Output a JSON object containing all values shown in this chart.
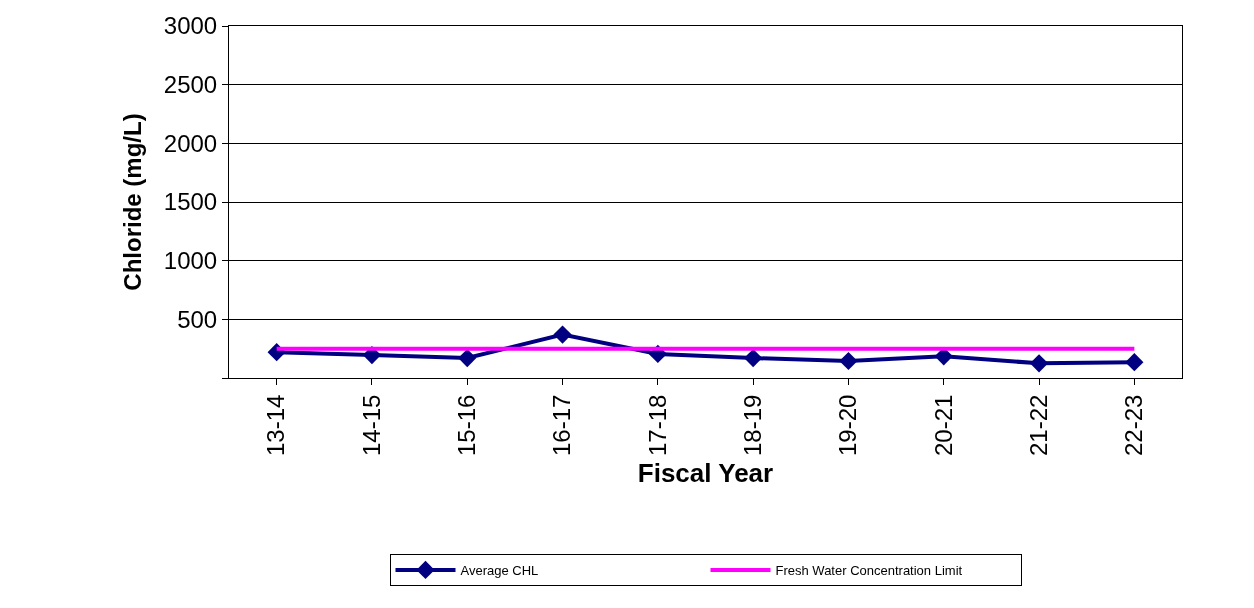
{
  "chart_data": {
    "type": "line",
    "xlabel": "Fiscal Year",
    "ylabel": "Chloride (mg/L)",
    "categories": [
      "13-14",
      "14-15",
      "15-16",
      "16-17",
      "17-18",
      "18-19",
      "19-20",
      "20-21",
      "21-22",
      "22-23"
    ],
    "series": [
      {
        "name": "Average CHL",
        "color": "#000080",
        "marker": "diamond",
        "values": [
          220,
          195,
          170,
          370,
          205,
          170,
          145,
          185,
          125,
          135
        ]
      },
      {
        "name": "Fresh Water Concentration Limit",
        "color": "#ff00ff",
        "marker": "none",
        "values": [
          250,
          250,
          250,
          250,
          250,
          250,
          250,
          250,
          250,
          250
        ]
      }
    ],
    "ylim": [
      0,
      3000
    ],
    "yticks": [
      {
        "value": 0,
        "label": null
      },
      500,
      1000,
      1500,
      2000,
      2500,
      3000
    ],
    "grid": "y",
    "legend": "bottom",
    "line_style": "solid"
  }
}
